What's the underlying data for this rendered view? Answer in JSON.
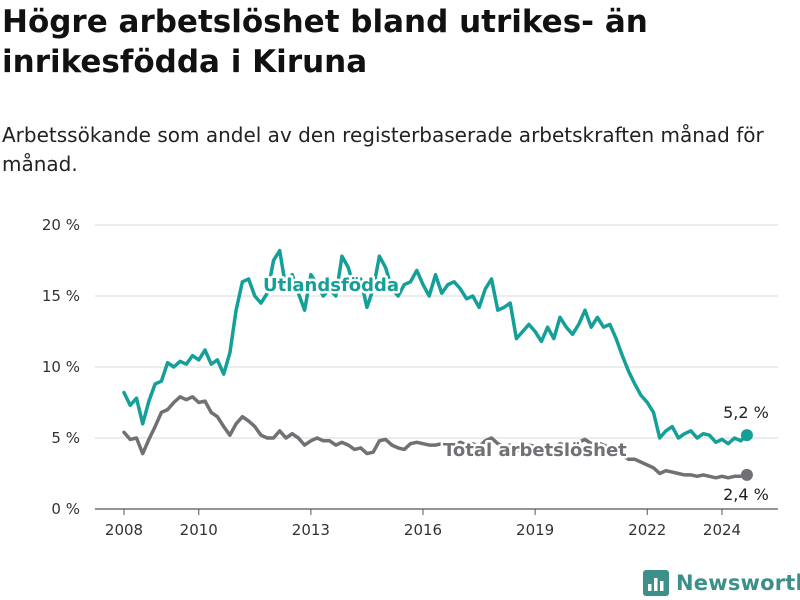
{
  "header": {
    "title": "Högre arbetslöshet bland utrikes- än inrikesfödda i Kiruna",
    "subtitle": "Arbetssökande som andel av den registerbaserade arbetskraften månad för månad."
  },
  "brand": {
    "name": "Newsworthy",
    "logo_icon": "bar-chart-icon",
    "color": "#3d8f89"
  },
  "chart_data": {
    "type": "line",
    "y_ticks": [
      "0 %",
      "5 %",
      "10 %",
      "15 %",
      "20 %"
    ],
    "x_ticks": [
      "2008",
      "2010",
      "2013",
      "2016",
      "2019",
      "2022",
      "2024"
    ],
    "y_range": [
      0,
      20
    ],
    "x_range": [
      "2008-01",
      "2024-12"
    ],
    "grid": "horizontal",
    "series": [
      {
        "name": "Utlandsfödda",
        "color": "#14a098",
        "end_label": "5,2 %",
        "values": [
          [
            "2008-01",
            8.2
          ],
          [
            "2008-03",
            7.3
          ],
          [
            "2008-05",
            7.8
          ],
          [
            "2008-07",
            6.0
          ],
          [
            "2008-09",
            7.6
          ],
          [
            "2008-11",
            8.8
          ],
          [
            "2009-01",
            9.0
          ],
          [
            "2009-03",
            10.3
          ],
          [
            "2009-05",
            10.0
          ],
          [
            "2009-07",
            10.4
          ],
          [
            "2009-09",
            10.2
          ],
          [
            "2009-11",
            10.8
          ],
          [
            "2010-01",
            10.5
          ],
          [
            "2010-03",
            11.2
          ],
          [
            "2010-05",
            10.2
          ],
          [
            "2010-07",
            10.5
          ],
          [
            "2010-09",
            9.5
          ],
          [
            "2010-11",
            11.0
          ],
          [
            "2011-01",
            14.0
          ],
          [
            "2011-03",
            16.0
          ],
          [
            "2011-05",
            16.2
          ],
          [
            "2011-07",
            15.0
          ],
          [
            "2011-09",
            14.5
          ],
          [
            "2011-11",
            15.2
          ],
          [
            "2012-01",
            17.5
          ],
          [
            "2012-03",
            18.2
          ],
          [
            "2012-05",
            15.5
          ],
          [
            "2012-07",
            16.5
          ],
          [
            "2012-09",
            15.2
          ],
          [
            "2012-11",
            14.0
          ],
          [
            "2013-01",
            16.5
          ],
          [
            "2013-03",
            15.8
          ],
          [
            "2013-05",
            15.0
          ],
          [
            "2013-07",
            15.5
          ],
          [
            "2013-09",
            15.0
          ],
          [
            "2013-11",
            17.8
          ],
          [
            "2014-01",
            17.0
          ],
          [
            "2014-03",
            15.5
          ],
          [
            "2014-05",
            16.2
          ],
          [
            "2014-07",
            14.2
          ],
          [
            "2014-09",
            15.5
          ],
          [
            "2014-11",
            17.8
          ],
          [
            "2015-01",
            17.0
          ],
          [
            "2015-03",
            15.5
          ],
          [
            "2015-05",
            15.0
          ],
          [
            "2015-07",
            15.8
          ],
          [
            "2015-09",
            16.0
          ],
          [
            "2015-11",
            16.8
          ],
          [
            "2016-01",
            15.8
          ],
          [
            "2016-03",
            15.0
          ],
          [
            "2016-05",
            16.5
          ],
          [
            "2016-07",
            15.2
          ],
          [
            "2016-09",
            15.8
          ],
          [
            "2016-11",
            16.0
          ],
          [
            "2017-01",
            15.5
          ],
          [
            "2017-03",
            14.8
          ],
          [
            "2017-05",
            15.0
          ],
          [
            "2017-07",
            14.2
          ],
          [
            "2017-09",
            15.5
          ],
          [
            "2017-11",
            16.2
          ],
          [
            "2018-01",
            14.0
          ],
          [
            "2018-03",
            14.2
          ],
          [
            "2018-05",
            14.5
          ],
          [
            "2018-07",
            12.0
          ],
          [
            "2018-09",
            12.5
          ],
          [
            "2018-11",
            13.0
          ],
          [
            "2019-01",
            12.5
          ],
          [
            "2019-03",
            11.8
          ],
          [
            "2019-05",
            12.8
          ],
          [
            "2019-07",
            12.0
          ],
          [
            "2019-09",
            13.5
          ],
          [
            "2019-11",
            12.8
          ],
          [
            "2020-01",
            12.3
          ],
          [
            "2020-03",
            13.0
          ],
          [
            "2020-05",
            14.0
          ],
          [
            "2020-07",
            12.8
          ],
          [
            "2020-09",
            13.5
          ],
          [
            "2020-11",
            12.8
          ],
          [
            "2021-01",
            13.0
          ],
          [
            "2021-03",
            12.0
          ],
          [
            "2021-05",
            10.8
          ],
          [
            "2021-07",
            9.7
          ],
          [
            "2021-09",
            8.8
          ],
          [
            "2021-11",
            8.0
          ],
          [
            "2022-01",
            7.5
          ],
          [
            "2022-03",
            6.8
          ],
          [
            "2022-05",
            5.0
          ],
          [
            "2022-07",
            5.5
          ],
          [
            "2022-09",
            5.8
          ],
          [
            "2022-11",
            5.0
          ],
          [
            "2023-01",
            5.3
          ],
          [
            "2023-03",
            5.5
          ],
          [
            "2023-05",
            5.0
          ],
          [
            "2023-07",
            5.3
          ],
          [
            "2023-09",
            5.2
          ],
          [
            "2023-11",
            4.7
          ],
          [
            "2024-01",
            4.9
          ],
          [
            "2024-03",
            4.6
          ],
          [
            "2024-05",
            5.0
          ],
          [
            "2024-07",
            4.8
          ],
          [
            "2024-09",
            5.2
          ]
        ]
      },
      {
        "name": "Total arbetslöshet",
        "color": "#707075",
        "end_label": "2,4 %",
        "values": [
          [
            "2008-01",
            5.4
          ],
          [
            "2008-03",
            4.9
          ],
          [
            "2008-05",
            5.0
          ],
          [
            "2008-07",
            3.9
          ],
          [
            "2008-09",
            4.9
          ],
          [
            "2008-11",
            5.8
          ],
          [
            "2009-01",
            6.8
          ],
          [
            "2009-03",
            7.0
          ],
          [
            "2009-05",
            7.5
          ],
          [
            "2009-07",
            7.9
          ],
          [
            "2009-09",
            7.7
          ],
          [
            "2009-11",
            7.9
          ],
          [
            "2010-01",
            7.5
          ],
          [
            "2010-03",
            7.6
          ],
          [
            "2010-05",
            6.8
          ],
          [
            "2010-07",
            6.5
          ],
          [
            "2010-09",
            5.8
          ],
          [
            "2010-11",
            5.2
          ],
          [
            "2011-01",
            6.0
          ],
          [
            "2011-03",
            6.5
          ],
          [
            "2011-05",
            6.2
          ],
          [
            "2011-07",
            5.8
          ],
          [
            "2011-09",
            5.2
          ],
          [
            "2011-11",
            5.0
          ],
          [
            "2012-01",
            5.0
          ],
          [
            "2012-03",
            5.5
          ],
          [
            "2012-05",
            5.0
          ],
          [
            "2012-07",
            5.3
          ],
          [
            "2012-09",
            5.0
          ],
          [
            "2012-11",
            4.5
          ],
          [
            "2013-01",
            4.8
          ],
          [
            "2013-03",
            5.0
          ],
          [
            "2013-05",
            4.8
          ],
          [
            "2013-07",
            4.8
          ],
          [
            "2013-09",
            4.5
          ],
          [
            "2013-11",
            4.7
          ],
          [
            "2014-01",
            4.5
          ],
          [
            "2014-03",
            4.2
          ],
          [
            "2014-05",
            4.3
          ],
          [
            "2014-07",
            3.9
          ],
          [
            "2014-09",
            4.0
          ],
          [
            "2014-11",
            4.8
          ],
          [
            "2015-01",
            4.9
          ],
          [
            "2015-03",
            4.5
          ],
          [
            "2015-05",
            4.3
          ],
          [
            "2015-07",
            4.2
          ],
          [
            "2015-09",
            4.6
          ],
          [
            "2015-11",
            4.7
          ],
          [
            "2016-01",
            4.6
          ],
          [
            "2016-03",
            4.5
          ],
          [
            "2016-05",
            4.5
          ],
          [
            "2016-07",
            4.6
          ],
          [
            "2016-09",
            4.4
          ],
          [
            "2016-11",
            4.5
          ],
          [
            "2017-01",
            4.7
          ],
          [
            "2017-03",
            4.5
          ],
          [
            "2017-05",
            4.6
          ],
          [
            "2017-07",
            4.4
          ],
          [
            "2017-09",
            4.8
          ],
          [
            "2017-11",
            5.0
          ],
          [
            "2018-01",
            4.6
          ],
          [
            "2018-03",
            4.4
          ],
          [
            "2018-05",
            4.5
          ],
          [
            "2018-07",
            4.1
          ],
          [
            "2018-09",
            4.3
          ],
          [
            "2018-11",
            4.5
          ],
          [
            "2019-01",
            4.4
          ],
          [
            "2019-03",
            4.2
          ],
          [
            "2019-05",
            4.5
          ],
          [
            "2019-07",
            4.3
          ],
          [
            "2019-09",
            4.6
          ],
          [
            "2019-11",
            4.5
          ],
          [
            "2020-01",
            4.5
          ],
          [
            "2020-03",
            4.7
          ],
          [
            "2020-05",
            4.9
          ],
          [
            "2020-07",
            4.6
          ],
          [
            "2020-09",
            4.7
          ],
          [
            "2020-11",
            4.5
          ],
          [
            "2021-01",
            4.3
          ],
          [
            "2021-03",
            4.0
          ],
          [
            "2021-05",
            3.8
          ],
          [
            "2021-07",
            3.5
          ],
          [
            "2021-09",
            3.5
          ],
          [
            "2021-11",
            3.3
          ],
          [
            "2022-01",
            3.1
          ],
          [
            "2022-03",
            2.9
          ],
          [
            "2022-05",
            2.5
          ],
          [
            "2022-07",
            2.7
          ],
          [
            "2022-09",
            2.6
          ],
          [
            "2022-11",
            2.5
          ],
          [
            "2023-01",
            2.4
          ],
          [
            "2023-03",
            2.4
          ],
          [
            "2023-05",
            2.3
          ],
          [
            "2023-07",
            2.4
          ],
          [
            "2023-09",
            2.3
          ],
          [
            "2023-11",
            2.2
          ],
          [
            "2024-01",
            2.3
          ],
          [
            "2024-03",
            2.2
          ],
          [
            "2024-05",
            2.3
          ],
          [
            "2024-07",
            2.3
          ],
          [
            "2024-09",
            2.4
          ]
        ]
      }
    ]
  }
}
